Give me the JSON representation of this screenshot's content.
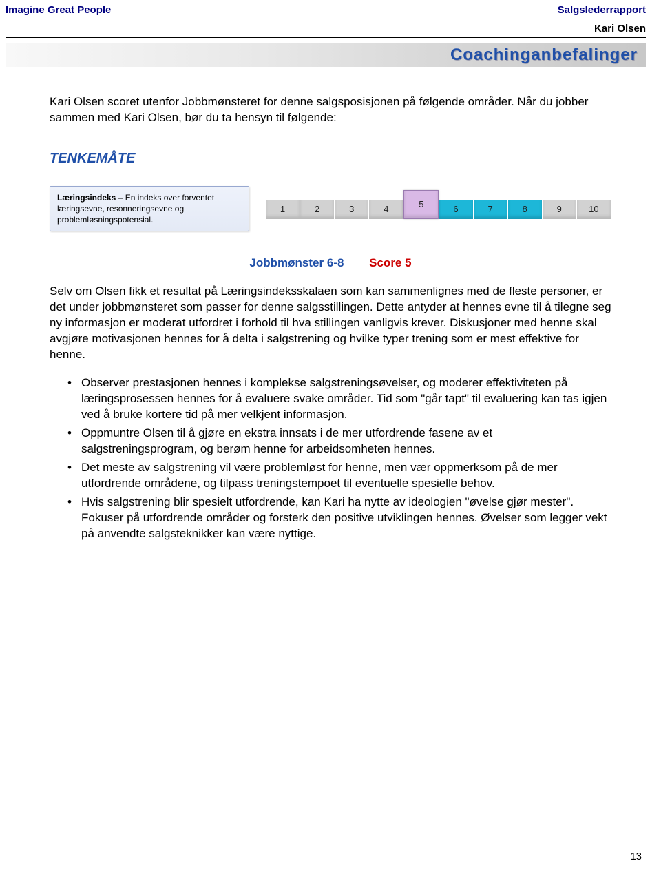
{
  "header": {
    "left": "Imagine Great People",
    "right_top": "Salgslederrapport",
    "right_name": "Kari Olsen"
  },
  "title": "Coachinganbefalinger",
  "intro": "Kari Olsen scoret utenfor Jobbmønsteret for denne salgsposisjonen på følgende områder. Når du jobber sammen med Kari Olsen, bør du ta hensyn til følgende:",
  "section_heading": "TENKEMÅTE",
  "index_box": {
    "title": "Læringsindeks",
    "sep": " – ",
    "desc": "En indeks over forventet læringsevne, resonneringsevne og problemløsningspotensial."
  },
  "scale": {
    "labels": [
      "1",
      "2",
      "3",
      "4",
      "5",
      "6",
      "7",
      "8",
      "9",
      "10"
    ],
    "highlight_index": 4,
    "pattern_range": [
      5,
      7
    ],
    "colors": {
      "gray": "#d2d2d2",
      "cyan": "#1db7d8",
      "highlight": "#d9b9e6"
    }
  },
  "pattern_line": {
    "pattern": "Jobbmønster 6-8",
    "score": "Score 5"
  },
  "body_para": "Selv om Olsen fikk et resultat på Læringsindeksskalaen som kan sammenlignes med de fleste personer, er det under jobbmønsteret som passer for denne salgsstillingen. Dette antyder at hennes evne til å tilegne seg ny informasjon er moderat utfordret i forhold til hva stillingen vanligvis krever. Diskusjoner med henne skal avgjøre motivasjonen hennes for å delta i salgstrening og hvilke typer trening som er mest effektive for henne.",
  "bullets": [
    "Observer prestasjonen hennes i komplekse salgstreningsøvelser, og moderer effektiviteten på læringsprosessen hennes for å evaluere svake områder. Tid som \"går tapt\" til evaluering kan tas igjen ved å bruke kortere tid på mer velkjent informasjon.",
    "Oppmuntre Olsen til å gjøre en ekstra innsats i de mer utfordrende fasene av et salgstreningsprogram, og berøm henne for arbeidsomheten hennes.",
    "Det meste av salgstrening vil være problemløst for henne, men vær oppmerksom på de mer utfordrende områdene, og tilpass treningstempoet til eventuelle spesielle behov.",
    "Hvis salgstrening blir spesielt utfordrende, kan Kari ha nytte av ideologien \"øvelse gjør mester\". Fokuser på utfordrende områder og forsterk den positive utviklingen hennes. Øvelser som legger vekt på anvendte salgsteknikker kan være nyttige."
  ],
  "page_number": "13",
  "colors": {
    "brand_blue": "#1f4fa8",
    "dark_blue": "#000080",
    "red": "#cc0000"
  }
}
